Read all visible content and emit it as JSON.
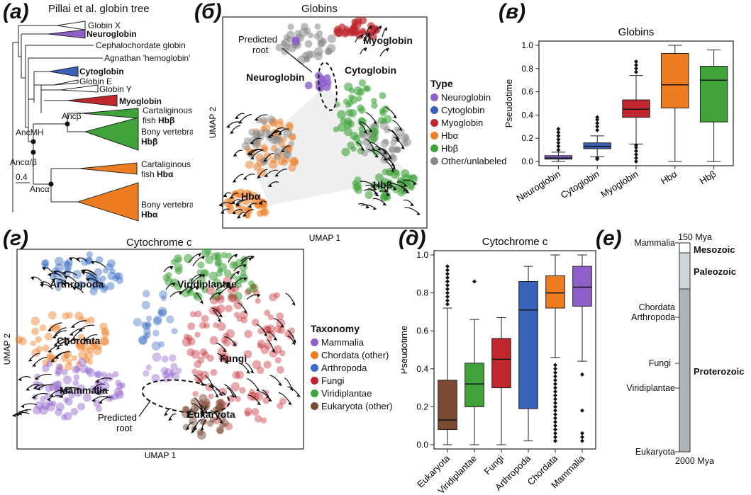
{
  "panel_letters": {
    "a": "(а)",
    "b": "(б)",
    "c": "(в)",
    "d": "(г)",
    "e": "(д)",
    "f": "(е)"
  },
  "colors": {
    "neuroglobin": "#8e5fc9",
    "cytoglobin": "#3a62b8",
    "myoglobin": "#c0262d",
    "hba": "#ee7d22",
    "hbb": "#3fa33a",
    "other": "#888888",
    "mammalia": "#8e5fc9",
    "chordata": "#ee7d22",
    "arthropoda": "#3a6fc4",
    "fungi": "#c0262d",
    "viridiplantae": "#3fa33a",
    "eukaryota": "#7b4a33"
  },
  "tree": {
    "title": "Pillai et al. globin tree",
    "labels": {
      "globin_x": "Globin X",
      "neuroglobin": "Neuroglobin",
      "cephalochordate": "Cephalochordate globin",
      "agnathan": "Agnathan 'hemoglobin'",
      "cytoglobin": "Cytoglobin",
      "globin_e": "Globin E",
      "globin_y": "Globin Y",
      "myoglobin": "Myoglobin",
      "cart_fish": "Cartaliginous",
      "fish_hbb_prefix": "fish ",
      "hbb": "Hbβ",
      "bony": "Bony vertebrate",
      "hba": "Hbα",
      "cart_fish_a": "Cartaliginous",
      "fish_hba_prefix": "fish ",
      "bony_a": "Bony vertebrate"
    },
    "nodes": {
      "ancb": "Ancβ",
      "ancmh": "AncMH",
      "ancab": "Ancα/β",
      "anca": "Ancα"
    },
    "scale": "0.4"
  },
  "umap_globins": {
    "title": "Globins",
    "xlabel": "UMAP 1",
    "ylabel": "UMAP 2",
    "labels": {
      "predicted": "Predicted",
      "root": "root",
      "myoglobin": "Myoglobin",
      "neuroglobin": "Neuroglobin",
      "cytoglobin": "Cytoglobin",
      "hba": "Hbα",
      "hbb": "Hbβ"
    }
  },
  "legend_globins": {
    "title": "Type",
    "items": [
      "Neuroglobin",
      "Cytoglobin",
      "Myoglobin",
      "Hbα",
      "Hbβ",
      "Other/unlabeled"
    ]
  },
  "umap_cyto": {
    "title": "Cytochrome c",
    "xlabel": "UMAP 1",
    "ylabel": "UMAP 2",
    "labels": {
      "arthropoda": "Arthropoda",
      "viridiplantae": "Viridiplantae",
      "chordata": "Chordata",
      "fungi": "Fungi",
      "mammalia": "Mammalia",
      "eukaryota": "Eukaryota",
      "predicted": "Predicted",
      "root": "root"
    }
  },
  "legend_cyto": {
    "title": "Taxonomy",
    "items": [
      "Mammalia",
      "Chordata (other)",
      "Arthropoda",
      "Fungi",
      "Viridiplantae",
      "Eukaryota (other)"
    ]
  },
  "timeline": {
    "top_label": "150 Mya",
    "bottom_label": "2000 Mya",
    "taxa": [
      "Mammalia",
      "Chordata",
      "Arthropoda",
      "Fungi",
      "Viridiplantae",
      "Eukaryota"
    ],
    "eras": [
      "Mesozoic",
      "Paleozoic",
      "Proterozoic"
    ]
  },
  "chart_data": [
    {
      "type": "box",
      "title": "Globins",
      "xlabel": "",
      "ylabel": "Pseudotime",
      "ylim": [
        0,
        1.0
      ],
      "yticks": [
        "0.0",
        "0.2",
        "0.4",
        "0.6",
        "0.8",
        "1.0"
      ],
      "categories": [
        "Neuroglobin",
        "Cytoglobin",
        "Myoglobin",
        "Hbα",
        "Hbβ"
      ],
      "colors": [
        "#8e5fc9",
        "#3a62b8",
        "#c0262d",
        "#ee7d22",
        "#3fa33a"
      ],
      "boxes": [
        {
          "whislo": 0.0,
          "q1": 0.02,
          "med": 0.03,
          "q3": 0.05,
          "whishi": 0.08,
          "fliers": [
            0.1,
            0.13,
            0.16,
            0.19,
            0.22,
            0.25,
            0.28
          ]
        },
        {
          "whislo": 0.04,
          "q1": 0.11,
          "med": 0.13,
          "q3": 0.16,
          "whishi": 0.22,
          "fliers": [
            0.02,
            0.03,
            0.27,
            0.3,
            0.33,
            0.36,
            0.38
          ]
        },
        {
          "whislo": 0.15,
          "q1": 0.38,
          "med": 0.45,
          "q3": 0.53,
          "whishi": 0.74,
          "fliers": [
            0.0,
            0.03,
            0.06,
            0.09,
            0.12,
            0.14,
            0.77,
            0.8,
            0.83,
            0.86
          ]
        },
        {
          "whislo": 0.0,
          "q1": 0.46,
          "med": 0.66,
          "q3": 0.93,
          "whishi": 1.0,
          "fliers": []
        },
        {
          "whislo": 0.0,
          "q1": 0.34,
          "med": 0.7,
          "q3": 0.82,
          "whishi": 0.96,
          "fliers": []
        }
      ]
    },
    {
      "type": "box",
      "title": "Cytochrome c",
      "xlabel": "",
      "ylabel": "Pseudotime",
      "ylim": [
        0,
        1.0
      ],
      "yticks": [
        "0.0",
        "0.2",
        "0.4",
        "0.6",
        "0.8",
        "1.0"
      ],
      "categories": [
        "Eukaryota",
        "Viridiplantae",
        "Fungi",
        "Arthropoda",
        "Chordata",
        "Mammalia"
      ],
      "colors": [
        "#7b4a33",
        "#3fa33a",
        "#c0262d",
        "#3a62b8",
        "#ee7d22",
        "#8e5fc9"
      ],
      "boxes": [
        {
          "whislo": 0.0,
          "q1": 0.08,
          "med": 0.13,
          "q3": 0.34,
          "whishi": 0.72,
          "fliers": [
            0.74,
            0.76,
            0.78,
            0.8,
            0.82,
            0.84,
            0.86,
            0.88,
            0.9,
            0.92,
            0.94
          ]
        },
        {
          "whislo": 0.0,
          "q1": 0.2,
          "med": 0.32,
          "q3": 0.43,
          "whishi": 0.66,
          "fliers": [
            0.86
          ]
        },
        {
          "whislo": 0.0,
          "q1": 0.3,
          "med": 0.45,
          "q3": 0.56,
          "whishi": 0.67,
          "fliers": []
        },
        {
          "whislo": 0.02,
          "q1": 0.19,
          "med": 0.71,
          "q3": 0.86,
          "whishi": 0.94,
          "fliers": []
        },
        {
          "whislo": 0.46,
          "q1": 0.72,
          "med": 0.8,
          "q3": 0.89,
          "whishi": 1.0,
          "fliers": [
            0.02,
            0.04,
            0.06,
            0.08,
            0.1,
            0.12,
            0.14,
            0.16,
            0.18,
            0.2,
            0.22,
            0.24,
            0.26,
            0.28,
            0.3,
            0.32,
            0.34,
            0.36,
            0.38,
            0.4,
            0.42
          ]
        },
        {
          "whislo": 0.44,
          "q1": 0.73,
          "med": 0.83,
          "q3": 0.94,
          "whishi": 1.0,
          "fliers": [
            0.02,
            0.04,
            0.06,
            0.18,
            0.37
          ]
        }
      ]
    }
  ]
}
